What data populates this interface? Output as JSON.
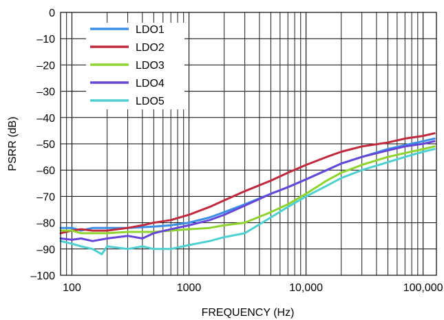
{
  "chart_data": {
    "type": "line",
    "title": "",
    "xlabel": "FREQUENCY (Hz)",
    "ylabel": "PSRR (dB)",
    "x_scale": "log",
    "xlim": [
      80,
      130000
    ],
    "ylim": [
      -100,
      0
    ],
    "grid": true,
    "legend_position": "top-left",
    "x_ticks": [
      {
        "value": 100,
        "label": "100"
      },
      {
        "value": 1000,
        "label": "1000"
      },
      {
        "value": 10000,
        "label": "10,000"
      },
      {
        "value": 100000,
        "label": "100,000"
      }
    ],
    "y_ticks": [
      {
        "value": 0,
        "label": "0"
      },
      {
        "value": -10,
        "label": "–10"
      },
      {
        "value": -20,
        "label": "–20"
      },
      {
        "value": -30,
        "label": "–30"
      },
      {
        "value": -40,
        "label": "–40"
      },
      {
        "value": -50,
        "label": "–50"
      },
      {
        "value": -60,
        "label": "–60"
      },
      {
        "value": -70,
        "label": "–70"
      },
      {
        "value": -80,
        "label": "–80"
      },
      {
        "value": -90,
        "label": "–90"
      },
      {
        "value": -100,
        "label": "–100"
      }
    ],
    "series": [
      {
        "name": "LDO1",
        "color": "#3a8ee6",
        "points": [
          [
            80,
            -82
          ],
          [
            100,
            -82
          ],
          [
            120,
            -83
          ],
          [
            150,
            -82
          ],
          [
            200,
            -82
          ],
          [
            300,
            -82
          ],
          [
            500,
            -81.5
          ],
          [
            700,
            -81
          ],
          [
            1000,
            -80
          ],
          [
            1500,
            -78
          ],
          [
            2000,
            -76
          ],
          [
            3000,
            -73
          ],
          [
            5000,
            -69
          ],
          [
            7000,
            -66.5
          ],
          [
            10000,
            -63.5
          ],
          [
            15000,
            -60
          ],
          [
            20000,
            -57.5
          ],
          [
            30000,
            -55
          ],
          [
            50000,
            -52
          ],
          [
            70000,
            -50.5
          ],
          [
            100000,
            -49
          ],
          [
            125000,
            -48
          ]
        ]
      },
      {
        "name": "LDO2",
        "color": "#c0283c",
        "points": [
          [
            80,
            -84
          ],
          [
            100,
            -83
          ],
          [
            120,
            -82.5
          ],
          [
            150,
            -83
          ],
          [
            200,
            -83
          ],
          [
            300,
            -82
          ],
          [
            400,
            -81
          ],
          [
            500,
            -80
          ],
          [
            700,
            -79
          ],
          [
            1000,
            -77
          ],
          [
            1500,
            -74
          ],
          [
            2000,
            -71.5
          ],
          [
            3000,
            -68
          ],
          [
            5000,
            -64
          ],
          [
            7000,
            -61
          ],
          [
            10000,
            -58
          ],
          [
            15000,
            -55
          ],
          [
            20000,
            -53
          ],
          [
            30000,
            -51
          ],
          [
            50000,
            -49.5
          ],
          [
            70000,
            -48
          ],
          [
            100000,
            -47
          ],
          [
            125000,
            -46
          ]
        ]
      },
      {
        "name": "LDO3",
        "color": "#8fd32e",
        "points": [
          [
            80,
            -83
          ],
          [
            100,
            -83
          ],
          [
            120,
            -84
          ],
          [
            150,
            -84
          ],
          [
            200,
            -84
          ],
          [
            300,
            -83.5
          ],
          [
            500,
            -83.5
          ],
          [
            700,
            -83
          ],
          [
            1000,
            -82.5
          ],
          [
            1500,
            -82
          ],
          [
            2000,
            -81
          ],
          [
            3000,
            -80
          ],
          [
            5000,
            -76
          ],
          [
            7000,
            -73
          ],
          [
            10000,
            -69
          ],
          [
            15000,
            -64
          ],
          [
            20000,
            -61
          ],
          [
            30000,
            -58
          ],
          [
            50000,
            -55
          ],
          [
            70000,
            -53.5
          ],
          [
            100000,
            -52
          ],
          [
            125000,
            -51
          ]
        ]
      },
      {
        "name": "LDO4",
        "color": "#6646d8",
        "points": [
          [
            80,
            -86
          ],
          [
            100,
            -86.5
          ],
          [
            120,
            -86
          ],
          [
            150,
            -87
          ],
          [
            200,
            -86
          ],
          [
            300,
            -85
          ],
          [
            400,
            -86
          ],
          [
            500,
            -84
          ],
          [
            700,
            -82.5
          ],
          [
            1000,
            -81
          ],
          [
            1500,
            -79
          ],
          [
            2000,
            -77
          ],
          [
            3000,
            -73.5
          ],
          [
            5000,
            -69
          ],
          [
            7000,
            -66.5
          ],
          [
            10000,
            -63.5
          ],
          [
            15000,
            -60
          ],
          [
            20000,
            -57.5
          ],
          [
            30000,
            -55
          ],
          [
            50000,
            -52.5
          ],
          [
            70000,
            -51
          ],
          [
            100000,
            -50
          ],
          [
            125000,
            -49
          ]
        ]
      },
      {
        "name": "LDO5",
        "color": "#4ecfd0",
        "points": [
          [
            80,
            -87
          ],
          [
            100,
            -88
          ],
          [
            120,
            -89
          ],
          [
            150,
            -90
          ],
          [
            180,
            -92
          ],
          [
            200,
            -89
          ],
          [
            300,
            -90
          ],
          [
            400,
            -89
          ],
          [
            500,
            -90
          ],
          [
            700,
            -90
          ],
          [
            1000,
            -88.5
          ],
          [
            1500,
            -87
          ],
          [
            2000,
            -85.5
          ],
          [
            3000,
            -84
          ],
          [
            5000,
            -78
          ],
          [
            7000,
            -74
          ],
          [
            10000,
            -70
          ],
          [
            15000,
            -66
          ],
          [
            20000,
            -63
          ],
          [
            30000,
            -60
          ],
          [
            50000,
            -57
          ],
          [
            70000,
            -55
          ],
          [
            100000,
            -53
          ],
          [
            125000,
            -52
          ]
        ]
      }
    ]
  }
}
